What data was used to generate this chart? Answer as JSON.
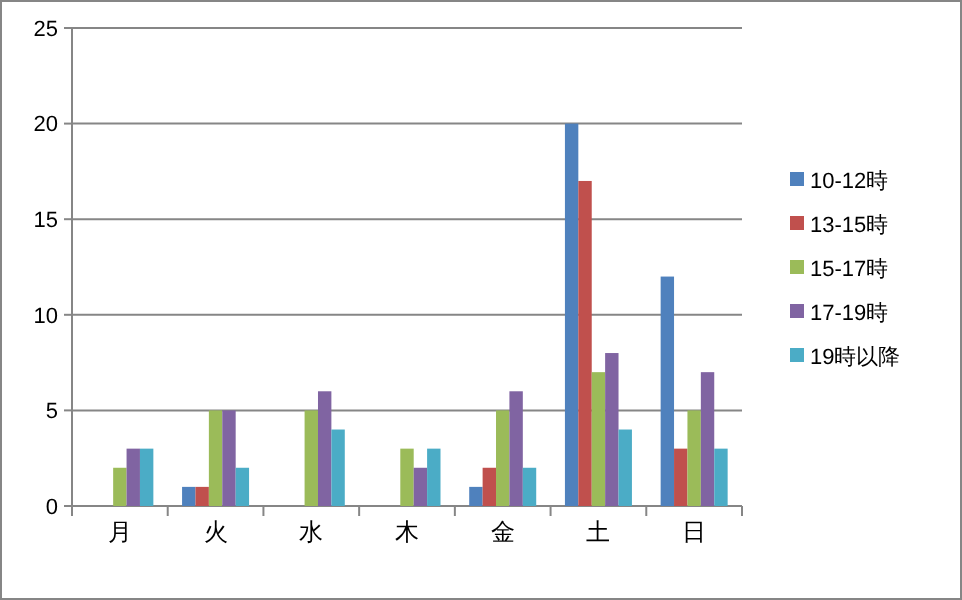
{
  "chart_data": {
    "type": "bar",
    "categories": [
      "月",
      "火",
      "水",
      "木",
      "金",
      "土",
      "日"
    ],
    "series": [
      {
        "name": "10-12時",
        "color": "#4f81bd",
        "values": [
          0,
          1,
          0,
          0,
          1,
          20,
          12
        ]
      },
      {
        "name": "13-15時",
        "color": "#c0504d",
        "values": [
          0,
          1,
          0,
          0,
          2,
          17,
          3
        ]
      },
      {
        "name": "15-17時",
        "color": "#9bbb59",
        "values": [
          2,
          5,
          5,
          3,
          5,
          7,
          5
        ]
      },
      {
        "name": "17-19時",
        "color": "#8064a2",
        "values": [
          3,
          5,
          6,
          2,
          6,
          8,
          7
        ]
      },
      {
        "name": "19時以降",
        "color": "#4bacc6",
        "values": [
          3,
          2,
          4,
          3,
          2,
          4,
          3
        ]
      }
    ],
    "ylim": [
      0,
      25
    ],
    "yticks": [
      0,
      5,
      10,
      15,
      20,
      25
    ],
    "grid": "y",
    "legend": "right"
  }
}
